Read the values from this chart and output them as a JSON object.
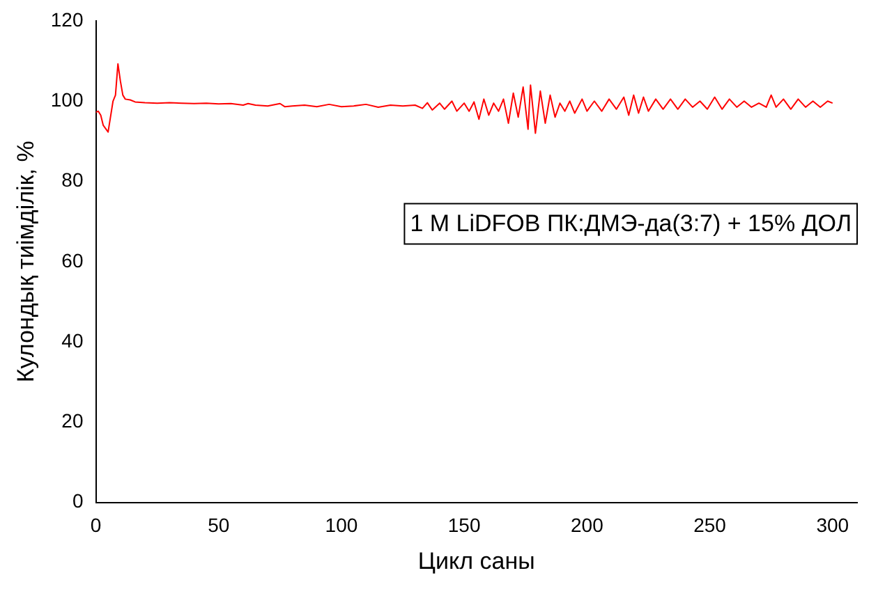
{
  "chart_data": {
    "type": "line",
    "xlabel": "Цикл саны",
    "ylabel": "Кулондық тиімділік, %",
    "annotations": [
      "1 M LiDFOB ПК:ДМЭ-да(3:7) + 15% ДОЛ"
    ],
    "xlim": [
      0,
      310
    ],
    "xticks": [
      0,
      50,
      100,
      150,
      200,
      250,
      300
    ],
    "ylim": [
      0,
      120
    ],
    "yticks": [
      0,
      20,
      40,
      60,
      80,
      100,
      120
    ],
    "grid": false,
    "legend": false,
    "marker": "none",
    "line_style": "solid",
    "series": [
      {
        "color": "#ff0000",
        "x": [
          0,
          1,
          2,
          3,
          5,
          7,
          8,
          9,
          10,
          11,
          12,
          14,
          16,
          20,
          25,
          30,
          35,
          40,
          45,
          50,
          55,
          60,
          62,
          65,
          70,
          75,
          77,
          80,
          85,
          90,
          95,
          100,
          105,
          110,
          115,
          120,
          125,
          130,
          133,
          135,
          137,
          140,
          142,
          145,
          147,
          150,
          152,
          154,
          156,
          158,
          160,
          162,
          164,
          166,
          168,
          170,
          172,
          174,
          176,
          177,
          179,
          181,
          183,
          185,
          187,
          189,
          191,
          193,
          195,
          198,
          200,
          203,
          206,
          209,
          212,
          215,
          217,
          219,
          221,
          223,
          225,
          228,
          231,
          234,
          237,
          240,
          243,
          246,
          249,
          252,
          255,
          258,
          261,
          264,
          267,
          270,
          273,
          275,
          277,
          280,
          283,
          286,
          289,
          292,
          295,
          298,
          300
        ],
        "values": [
          97.2,
          97.5,
          96.5,
          94,
          92.3,
          100,
          101.5,
          109.3,
          105,
          101.5,
          100.5,
          100.3,
          99.8,
          99.6,
          99.5,
          99.6,
          99.5,
          99.4,
          99.5,
          99.3,
          99.4,
          99.0,
          99.4,
          99.0,
          98.8,
          99.4,
          98.6,
          98.8,
          99.0,
          98.6,
          99.2,
          98.6,
          98.8,
          99.2,
          98.5,
          99.0,
          98.8,
          99.0,
          98.2,
          99.6,
          97.8,
          99.5,
          98.0,
          100.0,
          97.5,
          99.5,
          97.5,
          99.8,
          95.5,
          100.5,
          96.5,
          99.5,
          97.5,
          100.5,
          94.5,
          102.0,
          96,
          103.5,
          93.0,
          104,
          92,
          102.5,
          94.5,
          101.5,
          96,
          99.5,
          97.5,
          100,
          97,
          100.5,
          97.5,
          100,
          97.5,
          100.5,
          98,
          101,
          96.5,
          101.5,
          97,
          101,
          97.5,
          100.5,
          98,
          100.5,
          98,
          100.5,
          98.5,
          100,
          98,
          101,
          98,
          100.5,
          98.5,
          100,
          98.5,
          99.5,
          98.5,
          101.5,
          98.5,
          100.5,
          98,
          100.5,
          98.5,
          100,
          98.5,
          100,
          99.5
        ]
      }
    ]
  }
}
